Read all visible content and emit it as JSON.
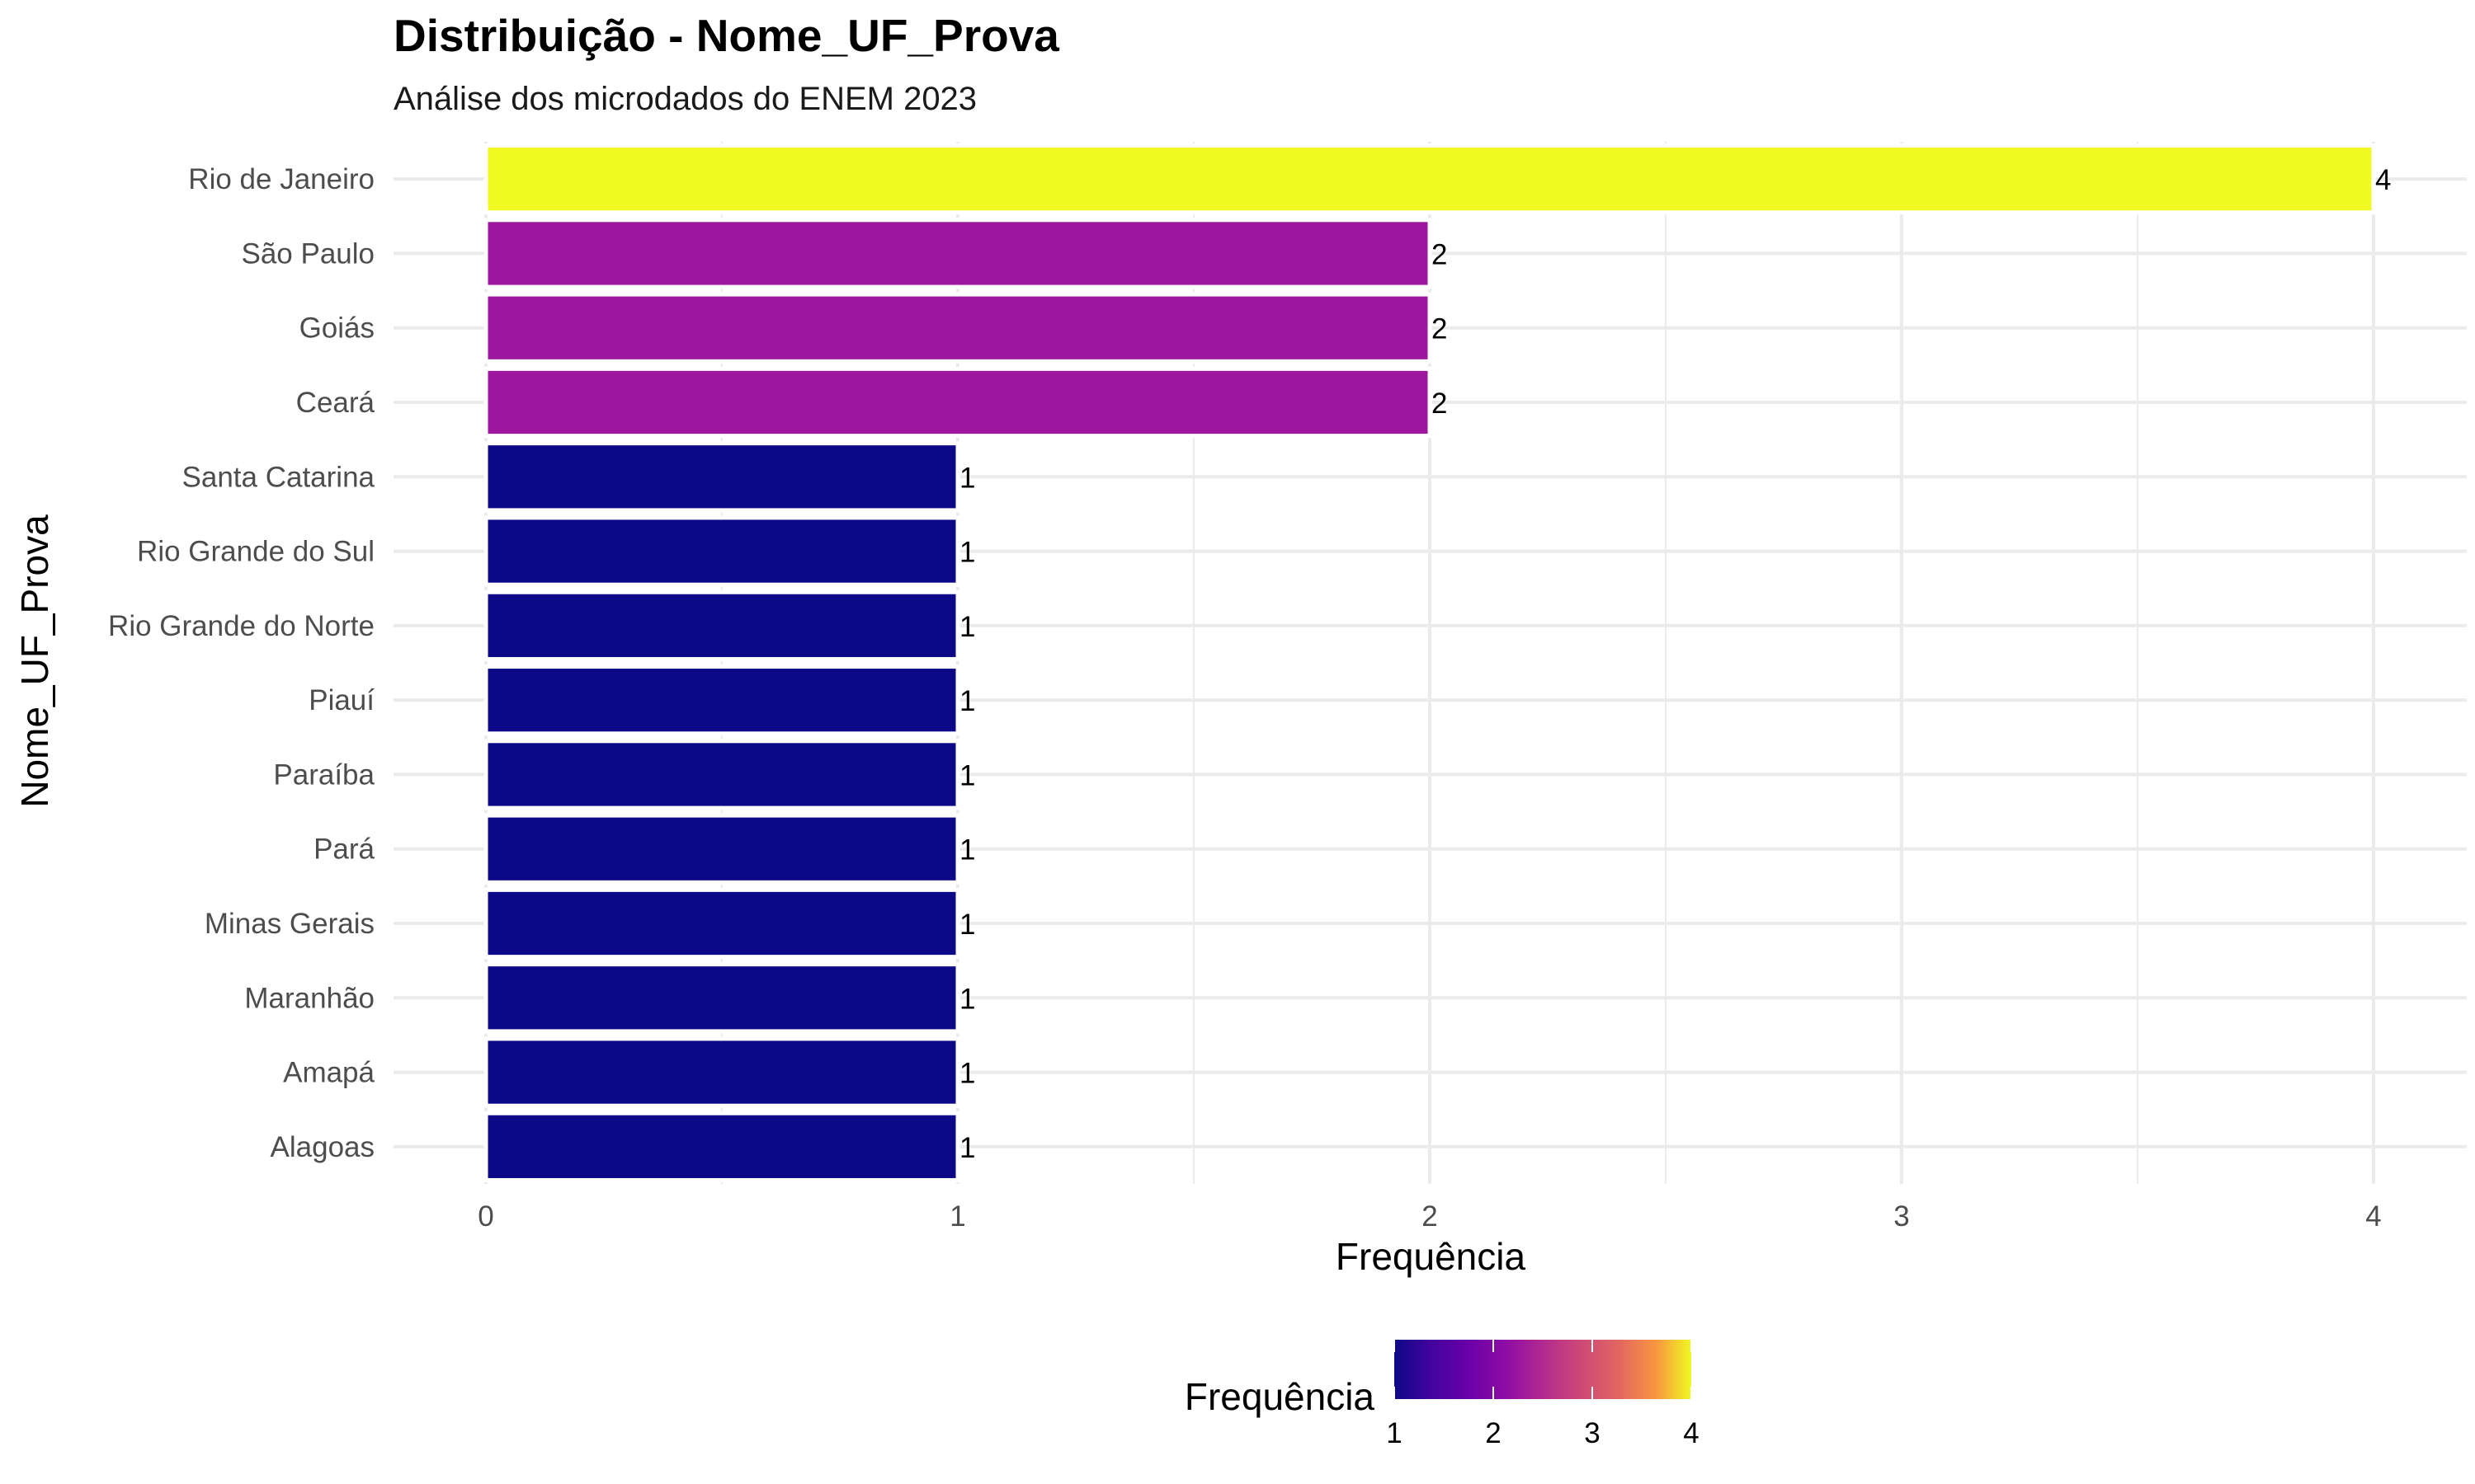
{
  "chart_data": {
    "type": "bar",
    "orientation": "horizontal",
    "title": "Distribuição - Nome_UF_Prova",
    "subtitle": "Análise dos microdados do ENEM 2023",
    "xlabel": "Frequência",
    "ylabel": "Nome_UF_Prova",
    "categories": [
      "Rio de Janeiro",
      "São Paulo",
      "Goiás",
      "Ceará",
      "Santa Catarina",
      "Rio Grande do Sul",
      "Rio Grande do Norte",
      "Piauí",
      "Paraíba",
      "Pará",
      "Minas Gerais",
      "Maranhão",
      "Amapá",
      "Alagoas"
    ],
    "values": [
      4,
      2,
      2,
      2,
      1,
      1,
      1,
      1,
      1,
      1,
      1,
      1,
      1,
      1
    ],
    "data_labels": [
      "4",
      "2",
      "2",
      "2",
      "1",
      "1",
      "1",
      "1",
      "1",
      "1",
      "1",
      "1",
      "1",
      "1"
    ],
    "xlim": [
      0,
      4.2
    ],
    "x_ticks": [
      0,
      1,
      2,
      3,
      4
    ],
    "x_tick_labels": [
      "0",
      "1",
      "2",
      "3",
      "4"
    ],
    "grid": true,
    "color_scale": {
      "name": "plasma",
      "title": "Frequência",
      "range": [
        1,
        4
      ],
      "ticks": [
        1,
        2,
        3,
        4
      ],
      "tick_labels": [
        "1",
        "2",
        "3",
        "4"
      ],
      "colors": {
        "1": "#0d0887",
        "2": "#9c179e",
        "4": "#f0f921"
      }
    },
    "legend_position": "bottom"
  }
}
